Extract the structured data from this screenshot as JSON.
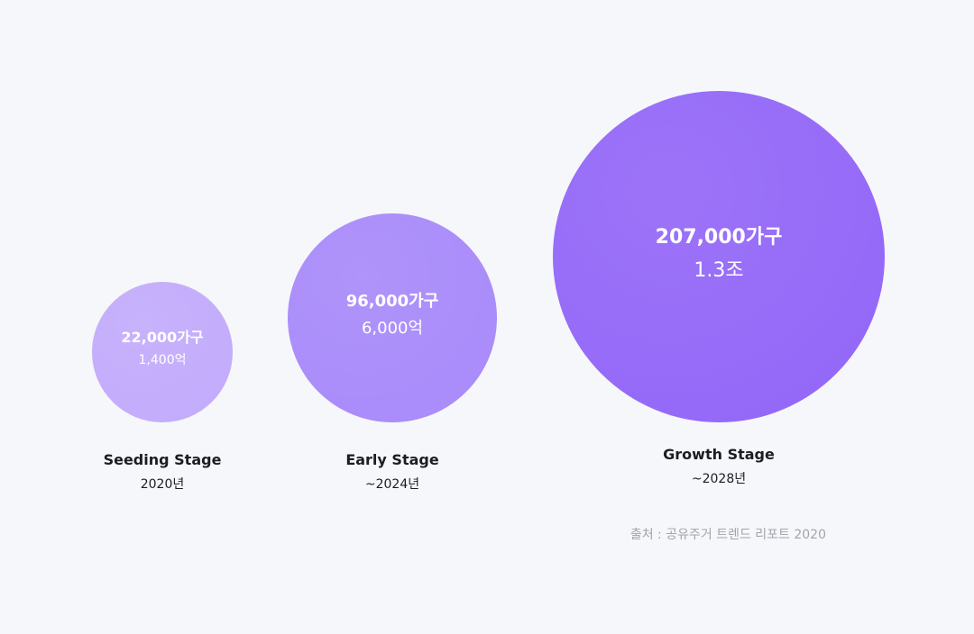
{
  "chart_data": {
    "type": "bubble",
    "title": "",
    "stages": [
      {
        "name": "Seeding Stage",
        "period": "2020년",
        "households": 22000,
        "households_label": "22,000가구",
        "market_size_label": "1,400억",
        "color": "#c3acfc"
      },
      {
        "name": "Early Stage",
        "period": "~2024년",
        "households": 96000,
        "households_label": "96,000가구",
        "market_size_label": "6,000억",
        "color": "#a98bfa"
      },
      {
        "name": "Growth Stage",
        "period": "~2028년",
        "households": 207000,
        "households_label": "207,000가구",
        "market_size_label": "1.3조",
        "color": "#9468f8"
      }
    ]
  },
  "source": "출처 : 공유주거 트렌드 리포트 2020"
}
